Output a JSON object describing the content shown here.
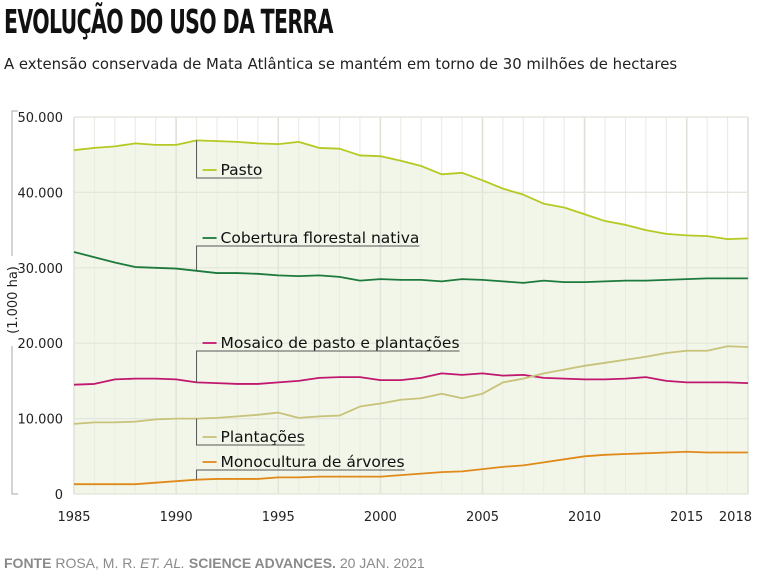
{
  "header": {
    "title": "EVOLUÇÃO DO USO DA TERRA",
    "subtitle": "A extensão conservada de Mata Atlântica se mantém em torno de 30 milhões de hectares"
  },
  "footer": {
    "source_label": "FONTE",
    "source_authors": "ROSA, M. R.",
    "source_etal": "ET. AL.",
    "source_journal": "SCIENCE ADVANCES.",
    "source_date": "20 JAN. 2021"
  },
  "chart_data": {
    "type": "line",
    "title": "EVOLUÇÃO DO USO DA TERRA",
    "subtitle": "A extensão conservada de Mata Atlântica se mantém em torno de 30 milhões de hectares",
    "xlabel": "",
    "ylabel": "(1.000 ha)",
    "xlim": [
      1985,
      2018
    ],
    "ylim": [
      0,
      50000
    ],
    "grid": true,
    "x_ticks": [
      1985,
      1990,
      1995,
      2000,
      2005,
      2010,
      2015,
      2018
    ],
    "x_tick_labels": [
      "1985",
      "1990",
      "1995",
      "2000",
      "2005",
      "2010",
      "2015",
      "2018"
    ],
    "y_ticks": [
      0,
      10000,
      20000,
      30000,
      40000,
      50000
    ],
    "y_tick_labels": [
      "0",
      "10.000",
      "20.000",
      "30.000",
      "40.000",
      "50.000"
    ],
    "x": [
      1985,
      1986,
      1987,
      1988,
      1989,
      1990,
      1991,
      1992,
      1993,
      1994,
      1995,
      1996,
      1997,
      1998,
      1999,
      2000,
      2001,
      2002,
      2003,
      2004,
      2005,
      2006,
      2007,
      2008,
      2009,
      2010,
      2011,
      2012,
      2013,
      2014,
      2015,
      2016,
      2017,
      2018
    ],
    "series": [
      {
        "name": "Pasto",
        "color": "#b5c922",
        "label_year": 1991,
        "values": [
          45600,
          45900,
          46100,
          46500,
          46300,
          46300,
          46900,
          46800,
          46700,
          46500,
          46400,
          46700,
          45900,
          45800,
          44900,
          44800,
          44200,
          43500,
          42400,
          42600,
          41600,
          40500,
          39700,
          38500,
          38000,
          37100,
          36200,
          35700,
          35000,
          34500,
          34300,
          34200,
          33800,
          33900
        ]
      },
      {
        "name": "Cobertura florestal nativa",
        "color": "#1d7a3c",
        "label_year": 1991,
        "values": [
          32100,
          31400,
          30700,
          30100,
          30000,
          29900,
          29600,
          29300,
          29300,
          29200,
          29000,
          28900,
          29000,
          28800,
          28300,
          28500,
          28400,
          28400,
          28200,
          28500,
          28400,
          28200,
          28000,
          28300,
          28100,
          28100,
          28200,
          28300,
          28300,
          28400,
          28500,
          28600,
          28600,
          28600
        ]
      },
      {
        "name": "Mosaico de pasto e plantações",
        "color": "#c0186e",
        "label_year": 1991,
        "values": [
          14500,
          14600,
          15200,
          15300,
          15300,
          15200,
          14800,
          14700,
          14600,
          14600,
          14800,
          15000,
          15400,
          15500,
          15500,
          15100,
          15100,
          15400,
          16000,
          15800,
          16000,
          15700,
          15800,
          15400,
          15300,
          15200,
          15200,
          15300,
          15500,
          15000,
          14800,
          14800,
          14800,
          14700
        ]
      },
      {
        "name": "Plantações",
        "color": "#c8c27a",
        "label_year": 1991,
        "values": [
          9300,
          9500,
          9500,
          9600,
          9900,
          10000,
          10000,
          10100,
          10300,
          10500,
          10800,
          10100,
          10300,
          10400,
          11600,
          12000,
          12500,
          12700,
          13300,
          12700,
          13300,
          14800,
          15300,
          16000,
          16500,
          17000,
          17400,
          17800,
          18200,
          18700,
          19000,
          19000,
          19600,
          19500
        ]
      },
      {
        "name": "Monocultura de árvores",
        "color": "#e08a1a",
        "label_year": 1991,
        "values": [
          1300,
          1300,
          1300,
          1300,
          1500,
          1700,
          1900,
          2000,
          2000,
          2000,
          2200,
          2200,
          2300,
          2300,
          2300,
          2300,
          2500,
          2700,
          2900,
          3000,
          3300,
          3600,
          3800,
          4200,
          4600,
          5000,
          5200,
          5300,
          5400,
          5500,
          5600,
          5500,
          5500,
          5500
        ]
      }
    ]
  }
}
